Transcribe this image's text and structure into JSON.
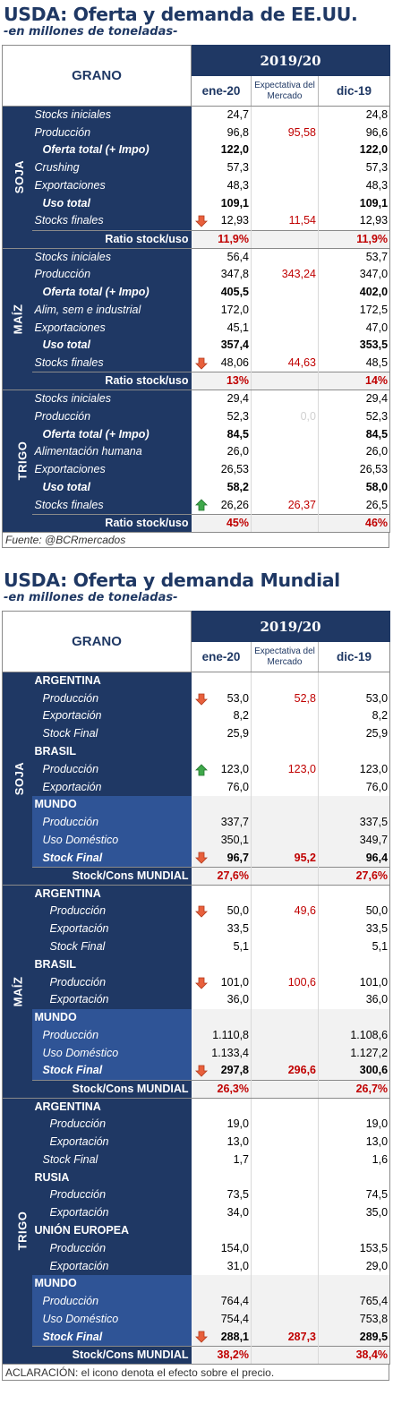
{
  "us": {
    "title": "USDA: Oferta y demanda de EE.UU.",
    "subtitle": "-en millones de toneladas-",
    "header": {
      "grano": "GRANO",
      "year": "2019/20",
      "col1": "ene-20",
      "col2": "Expectativa del Mercado",
      "col3": "dic-19"
    },
    "groups": [
      {
        "grain": "SOJA",
        "rows": [
          {
            "label": "Stocks iniciales",
            "style": "plain",
            "arrow": "",
            "v1": "24,7",
            "v2": "",
            "v3": "24,8"
          },
          {
            "label": "Producción",
            "style": "plain",
            "arrow": "",
            "v1": "96,8",
            "v2": "95,58",
            "v3": "96,6"
          },
          {
            "label": "Oferta total (+ Impo)",
            "style": "bold",
            "arrow": "",
            "v1": "122,0",
            "v2": "",
            "v3": "122,0"
          },
          {
            "label": "Crushing",
            "style": "plain",
            "arrow": "",
            "v1": "57,3",
            "v2": "",
            "v3": "57,3"
          },
          {
            "label": "Exportaciones",
            "style": "plain",
            "arrow": "",
            "v1": "48,3",
            "v2": "",
            "v3": "48,3"
          },
          {
            "label": "Uso total",
            "style": "bold",
            "arrow": "",
            "v1": "109,1",
            "v2": "",
            "v3": "109,1"
          },
          {
            "label": "Stocks finales",
            "style": "plain",
            "arrow": "down",
            "v1": "12,93",
            "v2": "11,54",
            "v3": "12,93"
          },
          {
            "label": "Ratio stock/uso",
            "style": "ratio",
            "arrow": "",
            "v1": "11,9%",
            "v2": "",
            "v3": "11,9%"
          }
        ]
      },
      {
        "grain": "MAÍZ",
        "rows": [
          {
            "label": "Stocks iniciales",
            "style": "plain",
            "arrow": "",
            "v1": "56,4",
            "v2": "",
            "v3": "53,7"
          },
          {
            "label": "Producción",
            "style": "plain",
            "arrow": "",
            "v1": "347,8",
            "v2": "343,24",
            "v3": "347,0"
          },
          {
            "label": "Oferta total (+ Impo)",
            "style": "bold",
            "arrow": "",
            "v1": "405,5",
            "v2": "",
            "v3": "402,0"
          },
          {
            "label": "Alim, sem e industrial",
            "style": "plain",
            "arrow": "",
            "v1": "172,0",
            "v2": "",
            "v3": "172,5"
          },
          {
            "label": "Exportaciones",
            "style": "plain",
            "arrow": "",
            "v1": "45,1",
            "v2": "",
            "v3": "47,0"
          },
          {
            "label": "Uso total",
            "style": "bold",
            "arrow": "",
            "v1": "357,4",
            "v2": "",
            "v3": "353,5"
          },
          {
            "label": "Stocks finales",
            "style": "plain",
            "arrow": "down",
            "v1": "48,06",
            "v2": "44,63",
            "v3": "48,5"
          },
          {
            "label": "Ratio stock/uso",
            "style": "ratio",
            "arrow": "",
            "v1": "13%",
            "v2": "",
            "v3": "14%"
          }
        ]
      },
      {
        "grain": "TRIGO",
        "rows": [
          {
            "label": "Stocks iniciales",
            "style": "plain",
            "arrow": "",
            "v1": "29,4",
            "v2": "",
            "v3": "29,4"
          },
          {
            "label": "Producción",
            "style": "plain",
            "arrow": "",
            "v1": "52,3",
            "v2": "0,0",
            "v2faint": true,
            "v3": "52,3"
          },
          {
            "label": "Oferta total (+ Impo)",
            "style": "bold",
            "arrow": "",
            "v1": "84,5",
            "v2": "",
            "v3": "84,5"
          },
          {
            "label": "Alimentación humana",
            "style": "plain",
            "arrow": "",
            "v1": "26,0",
            "v2": "",
            "v3": "26,0"
          },
          {
            "label": "Exportaciones",
            "style": "plain",
            "arrow": "",
            "v1": "26,53",
            "v2": "",
            "v3": "26,53"
          },
          {
            "label": "Uso total",
            "style": "bold",
            "arrow": "",
            "v1": "58,2",
            "v2": "",
            "v3": "58,0"
          },
          {
            "label": "Stocks finales",
            "style": "plain",
            "arrow": "up",
            "v1": "26,26",
            "v2": "26,37",
            "v3": "26,5"
          },
          {
            "label": "Ratio stock/uso",
            "style": "ratio",
            "arrow": "",
            "v1": "45%",
            "v2": "",
            "v3": "46%"
          }
        ]
      }
    ],
    "footer": "Fuente: @BCRmercados"
  },
  "world": {
    "title": "USDA: Oferta y demanda Mundial",
    "subtitle": "-en millones de toneladas-",
    "header": {
      "grano": "GRANO",
      "year": "2019/20",
      "col1": "ene-20",
      "col2": "Expectativa del Mercado",
      "col3": "dic-19"
    },
    "groups": [
      {
        "grain": "SOJA",
        "rows": [
          {
            "label": "ARGENTINA",
            "style": "country",
            "arrow": "",
            "v1": "",
            "v2": "",
            "v3": ""
          },
          {
            "label": "Producción",
            "style": "sub",
            "arrow": "down",
            "v1": "53,0",
            "v2": "52,8",
            "v3": "53,0"
          },
          {
            "label": "Exportación",
            "style": "sub",
            "arrow": "",
            "v1": "8,2",
            "v2": "",
            "v3": "8,2"
          },
          {
            "label": "Stock Final",
            "style": "sub",
            "arrow": "",
            "v1": "25,9",
            "v2": "",
            "v3": "25,9"
          },
          {
            "label": "BRASIL",
            "style": "country",
            "arrow": "",
            "v1": "",
            "v2": "",
            "v3": ""
          },
          {
            "label": "Producción",
            "style": "sub",
            "arrow": "up",
            "v1": "123,0",
            "v2": "123,0",
            "v3": "123,0"
          },
          {
            "label": "Exportación",
            "style": "sub",
            "arrow": "",
            "v1": "76,0",
            "v2": "",
            "v3": "76,0"
          },
          {
            "label": "MUNDO",
            "style": "mundo-country",
            "arrow": "",
            "v1": "",
            "v2": "",
            "v3": ""
          },
          {
            "label": "Producción",
            "style": "mundo-sub",
            "arrow": "",
            "v1": "337,7",
            "v2": "",
            "v3": "337,5"
          },
          {
            "label": "Uso Doméstico",
            "style": "mundo-sub",
            "arrow": "",
            "v1": "350,1",
            "v2": "",
            "v3": "349,7"
          },
          {
            "label": "Stock Final",
            "style": "mundo-bold",
            "arrow": "down",
            "v1": "96,7",
            "v2": "95,2",
            "v3": "96,4"
          },
          {
            "label": "Stock/Cons MUNDIAL",
            "style": "ratio",
            "arrow": "",
            "v1": "27,6%",
            "v2": "",
            "v3": "27,6%"
          }
        ]
      },
      {
        "grain": "MAÍZ",
        "rows": [
          {
            "label": "ARGENTINA",
            "style": "country",
            "arrow": "",
            "v1": "",
            "v2": "",
            "v3": ""
          },
          {
            "label": "Producción",
            "style": "sub2",
            "arrow": "down",
            "v1": "50,0",
            "v2": "49,6",
            "v3": "50,0"
          },
          {
            "label": "Exportación",
            "style": "sub2",
            "arrow": "",
            "v1": "33,5",
            "v2": "",
            "v3": "33,5"
          },
          {
            "label": "Stock Final",
            "style": "sub2",
            "arrow": "",
            "v1": "5,1",
            "v2": "",
            "v3": "5,1"
          },
          {
            "label": "BRASIL",
            "style": "country",
            "arrow": "",
            "v1": "",
            "v2": "",
            "v3": ""
          },
          {
            "label": "Producción",
            "style": "sub2",
            "arrow": "down",
            "v1": "101,0",
            "v2": "100,6",
            "v3": "101,0"
          },
          {
            "label": "Exportación",
            "style": "sub2",
            "arrow": "",
            "v1": "36,0",
            "v2": "",
            "v3": "36,0"
          },
          {
            "label": "MUNDO",
            "style": "mundo-country",
            "arrow": "",
            "v1": "",
            "v2": "",
            "v3": ""
          },
          {
            "label": "Producción",
            "style": "mundo-sub",
            "arrow": "",
            "v1": "1.110,8",
            "v2": "",
            "v3": "1.108,6"
          },
          {
            "label": "Uso Doméstico",
            "style": "mundo-sub",
            "arrow": "",
            "v1": "1.133,4",
            "v2": "",
            "v3": "1.127,2"
          },
          {
            "label": "Stock Final",
            "style": "mundo-bold",
            "arrow": "down",
            "v1": "297,8",
            "v2": "296,6",
            "v3": "300,6"
          },
          {
            "label": "Stock/Cons MUNDIAL",
            "style": "ratio",
            "arrow": "",
            "v1": "26,3%",
            "v2": "",
            "v3": "26,7%"
          }
        ]
      },
      {
        "grain": "TRIGO",
        "rows": [
          {
            "label": "ARGENTINA",
            "style": "country",
            "arrow": "",
            "v1": "",
            "v2": "",
            "v3": ""
          },
          {
            "label": "Producción",
            "style": "sub2",
            "arrow": "",
            "v1": "19,0",
            "v2": "",
            "v3": "19,0"
          },
          {
            "label": "Exportación",
            "style": "sub2",
            "arrow": "",
            "v1": "13,0",
            "v2": "",
            "v3": "13,0"
          },
          {
            "label": "Stock Final",
            "style": "sub",
            "arrow": "",
            "v1": "1,7",
            "v2": "",
            "v3": "1,6"
          },
          {
            "label": "RUSIA",
            "style": "country",
            "arrow": "",
            "v1": "",
            "v2": "",
            "v3": ""
          },
          {
            "label": "Producción",
            "style": "sub2",
            "arrow": "",
            "v1": "73,5",
            "v2": "",
            "v3": "74,5"
          },
          {
            "label": "Exportación",
            "style": "sub2",
            "arrow": "",
            "v1": "34,0",
            "v2": "",
            "v3": "35,0"
          },
          {
            "label": "UNIÓN EUROPEA",
            "style": "country",
            "arrow": "",
            "v1": "",
            "v2": "",
            "v3": ""
          },
          {
            "label": "Producción",
            "style": "sub2",
            "arrow": "",
            "v1": "154,0",
            "v2": "",
            "v3": "153,5"
          },
          {
            "label": "Exportación",
            "style": "sub2",
            "arrow": "",
            "v1": "31,0",
            "v2": "",
            "v3": "29,0"
          },
          {
            "label": "MUNDO",
            "style": "mundo-country",
            "arrow": "",
            "v1": "",
            "v2": "",
            "v3": ""
          },
          {
            "label": "Producción",
            "style": "mundo-sub",
            "arrow": "",
            "v1": "764,4",
            "v2": "",
            "v3": "765,4"
          },
          {
            "label": "Uso Doméstico",
            "style": "mundo-sub",
            "arrow": "",
            "v1": "754,4",
            "v2": "",
            "v3": "753,8"
          },
          {
            "label": "Stock Final",
            "style": "mundo-bold",
            "arrow": "down",
            "v1": "288,1",
            "v2": "287,3",
            "v3": "289,5"
          },
          {
            "label": "Stock/Cons MUNDIAL",
            "style": "ratio",
            "arrow": "",
            "v1": "38,2%",
            "v2": "",
            "v3": "38,4%"
          }
        ]
      }
    ],
    "footer": "ACLARACIÓN: el icono denota el efecto sobre el precio."
  },
  "colors": {
    "navy": "#1f3864",
    "mundo_blue": "#2f5496",
    "red": "#c00000",
    "arrow_down": "#e06040",
    "arrow_up": "#3aa04a"
  }
}
